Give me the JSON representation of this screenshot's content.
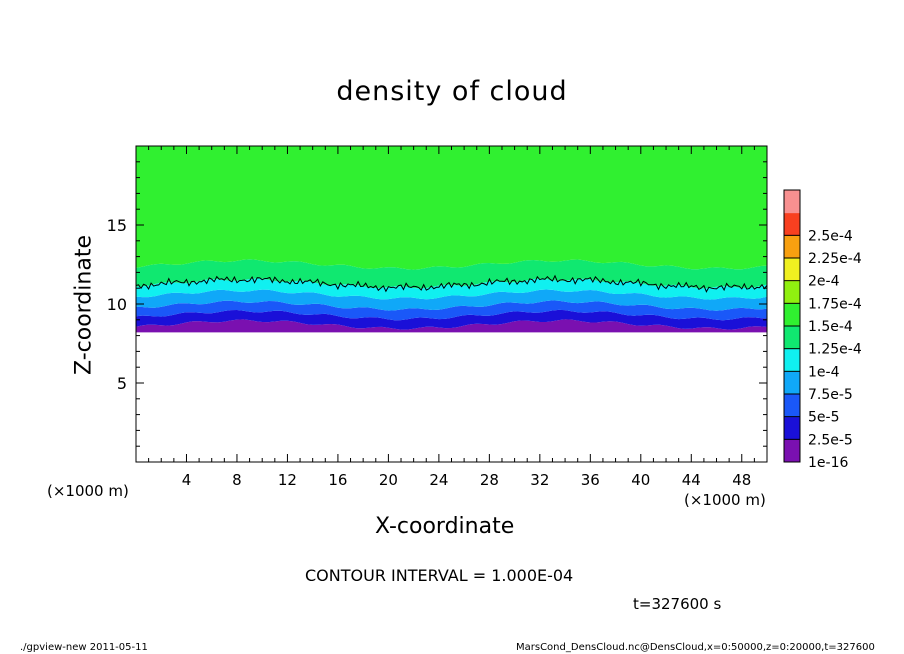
{
  "chart_data": {
    "type": "heatmap",
    "title": "density of cloud",
    "xlabel": "X-coordinate",
    "ylabel": "Z-coordinate",
    "x_unit": "(×1000 m)",
    "xlim": [
      0,
      50
    ],
    "ylim": [
      0,
      20
    ],
    "x_ticks": [
      4,
      8,
      12,
      16,
      20,
      24,
      28,
      32,
      36,
      40,
      44,
      48
    ],
    "y_ticks": [
      5,
      10,
      15
    ],
    "colorbar": {
      "levels": [
        "1e-16",
        "2.5e-5",
        "5e-5",
        "7.5e-5",
        "1e-4",
        "1.25e-4",
        "1.5e-4",
        "1.75e-4",
        "2e-4",
        "2.25e-4",
        "2.5e-4"
      ],
      "colors": [
        "#7a10b0",
        "#1a10d8",
        "#1a58f8",
        "#10a8f8",
        "#10f0f0",
        "#10e870",
        "#30f030",
        "#90f010",
        "#f0f020",
        "#f8a010",
        "#f84020",
        "#f89090"
      ]
    },
    "profile_z": [
      8.2,
      8.7,
      9.3,
      9.9,
      10.6,
      11.3,
      12.5,
      20
    ],
    "profile_level_index": [
      0,
      1,
      2,
      3,
      4,
      5,
      6
    ],
    "cloud_base_z": 8.2,
    "contour_level": "1e-4"
  },
  "contour_interval": "CONTOUR INTERVAL = 1.000E-04",
  "time_label": "t=327600 s",
  "footer_left": "./gpview-new   2011-05-11",
  "footer_right": "MarsCond_DensCloud.nc@DensCloud,x=0:50000,z=0:20000,t=327600"
}
